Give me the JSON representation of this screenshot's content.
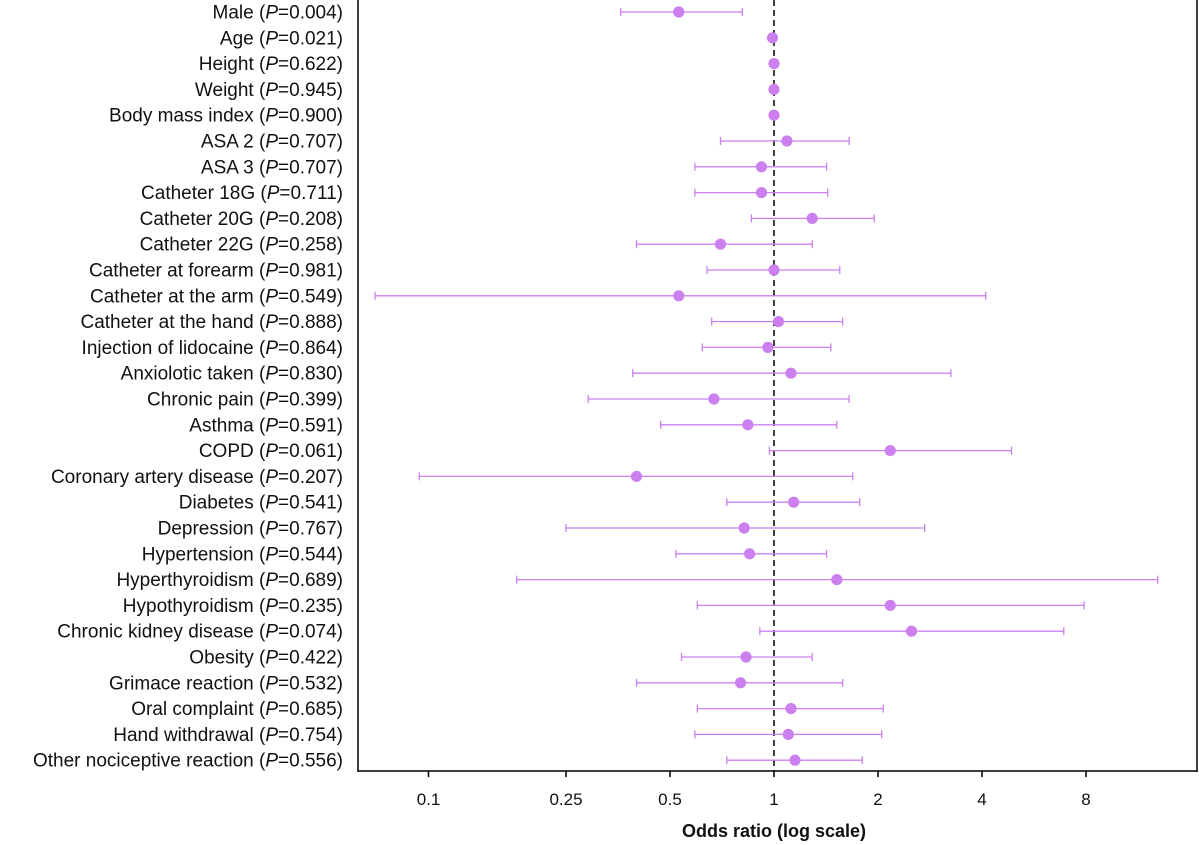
{
  "chart_data": {
    "type": "forest",
    "xlabel": "Odds ratio (log scale)",
    "x_scale": "log2",
    "xlim": [
      0.065,
      14.5
    ],
    "xticks": [
      0.1,
      0.25,
      0.5,
      1,
      2,
      4,
      8
    ],
    "xtick_labels": [
      "0.1",
      "0.25",
      "0.5",
      "1",
      "2",
      "4",
      "8"
    ],
    "reference_line": 1,
    "grid": false,
    "colors": {
      "marker": "#cc80f0",
      "errorbar": "#cc80f0",
      "axis": "#000000",
      "reference": "#000000"
    },
    "rows": [
      {
        "name": "Male",
        "p": "0.004",
        "or": 0.53,
        "lo": 0.36,
        "hi": 0.81
      },
      {
        "name": "Age",
        "p": "0.021",
        "or": 0.99,
        "lo": 0.99,
        "hi": 0.99
      },
      {
        "name": "Height",
        "p": "0.622",
        "or": 1.0,
        "lo": 1.0,
        "hi": 1.0
      },
      {
        "name": "Weight",
        "p": "0.945",
        "or": 1.0,
        "lo": 1.0,
        "hi": 1.0
      },
      {
        "name": "Body mass index",
        "p": "0.900",
        "or": 1.0,
        "lo": 1.0,
        "hi": 1.0
      },
      {
        "name": "ASA 2",
        "p": "0.707",
        "or": 1.09,
        "lo": 0.7,
        "hi": 1.65
      },
      {
        "name": "ASA 3",
        "p": "0.707",
        "or": 0.92,
        "lo": 0.59,
        "hi": 1.42
      },
      {
        "name": "Catheter 18G",
        "p": "0.711",
        "or": 0.92,
        "lo": 0.59,
        "hi": 1.43
      },
      {
        "name": "Catheter 20G",
        "p": "0.208",
        "or": 1.29,
        "lo": 0.86,
        "hi": 1.95
      },
      {
        "name": "Catheter 22G",
        "p": "0.258",
        "or": 0.7,
        "lo": 0.4,
        "hi": 1.29
      },
      {
        "name": "Catheter at forearm",
        "p": "0.981",
        "or": 1.0,
        "lo": 0.64,
        "hi": 1.55
      },
      {
        "name": "Catheter at the arm",
        "p": "0.549",
        "or": 0.53,
        "lo": 0.07,
        "hi": 4.1
      },
      {
        "name": "Catheter at the hand",
        "p": "0.888",
        "or": 1.03,
        "lo": 0.66,
        "hi": 1.58
      },
      {
        "name": "Injection of lidocaine",
        "p": "0.864",
        "or": 0.96,
        "lo": 0.62,
        "hi": 1.46
      },
      {
        "name": "Anxiolotic taken",
        "p": "0.830",
        "or": 1.12,
        "lo": 0.39,
        "hi": 3.25
      },
      {
        "name": "Chronic pain",
        "p": "0.399",
        "or": 0.67,
        "lo": 0.29,
        "hi": 1.65
      },
      {
        "name": "Asthma",
        "p": "0.591",
        "or": 0.84,
        "lo": 0.47,
        "hi": 1.52
      },
      {
        "name": "COPD",
        "p": "0.061",
        "or": 2.17,
        "lo": 0.97,
        "hi": 4.87
      },
      {
        "name": "Coronary artery disease",
        "p": "0.207",
        "or": 0.4,
        "lo": 0.094,
        "hi": 1.69
      },
      {
        "name": "Diabetes",
        "p": "0.541",
        "or": 1.14,
        "lo": 0.73,
        "hi": 1.77
      },
      {
        "name": "Depression",
        "p": "0.767",
        "or": 0.82,
        "lo": 0.25,
        "hi": 2.73
      },
      {
        "name": "Hypertension",
        "p": "0.544",
        "or": 0.85,
        "lo": 0.52,
        "hi": 1.42
      },
      {
        "name": "Hyperthyroidism",
        "p": "0.689",
        "or": 1.52,
        "lo": 0.18,
        "hi": 12.9
      },
      {
        "name": "Hypothyroidism",
        "p": "0.235",
        "or": 2.17,
        "lo": 0.6,
        "hi": 7.9
      },
      {
        "name": "Chronic kidney disease",
        "p": "0.074",
        "or": 2.5,
        "lo": 0.91,
        "hi": 6.9
      },
      {
        "name": "Obesity",
        "p": "0.422",
        "or": 0.83,
        "lo": 0.54,
        "hi": 1.29
      },
      {
        "name": "Grimace reaction",
        "p": "0.532",
        "or": 0.8,
        "lo": 0.4,
        "hi": 1.58
      },
      {
        "name": "Oral complaint",
        "p": "0.685",
        "or": 1.12,
        "lo": 0.6,
        "hi": 2.07
      },
      {
        "name": "Hand withdrawal",
        "p": "0.754",
        "or": 1.1,
        "lo": 0.59,
        "hi": 2.05
      },
      {
        "name": "Other nociceptive reaction",
        "p": "0.556",
        "or": 1.15,
        "lo": 0.73,
        "hi": 1.8
      }
    ]
  }
}
